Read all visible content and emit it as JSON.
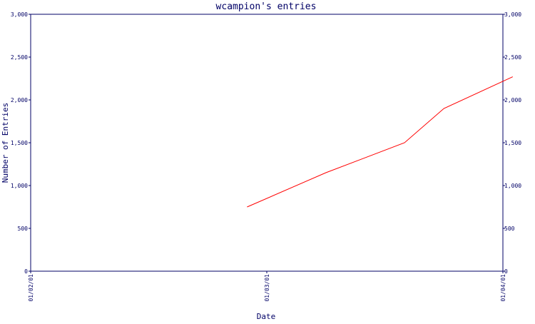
{
  "chart_data": {
    "type": "line",
    "title": "wcampion's entries",
    "xlabel": "Date",
    "ylabel": "Number of Entries",
    "x_ticks": [
      "01/02/01",
      "01/03/01",
      "01/04/01"
    ],
    "y_ticks": [
      "0",
      "500",
      "1,000",
      "1,500",
      "2,000",
      "2,500",
      "3,000"
    ],
    "ylim": [
      0,
      3000
    ],
    "xlim": [
      "2001-01-02",
      "2001-01-04"
    ],
    "right_y_axis": true,
    "grid": false,
    "series": [
      {
        "x": [
          "2001-01-02 22:00",
          "2001-01-03 06:00",
          "2001-01-03 14:00",
          "2001-01-03 18:00",
          "2001-01-04 01:00"
        ],
        "values": [
          750,
          1150,
          1500,
          1900,
          2270
        ]
      }
    ]
  },
  "colors": {
    "axis": "#000066",
    "line": "#ff0000",
    "text": "#000066"
  }
}
